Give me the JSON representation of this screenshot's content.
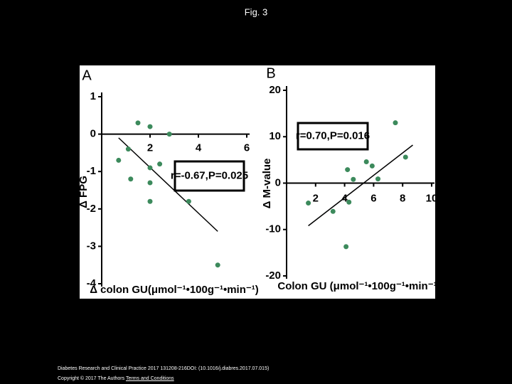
{
  "title": "Fig. 3",
  "chart_data": [
    {
      "type": "scatter",
      "panel": "A",
      "xlabel": "Δ colon GU(μmol⁻¹•100g⁻¹•min⁻¹)",
      "ylabel": "Δ FPG",
      "annotation": "r=-0.67,P=0.025",
      "color": "#3c8a5c",
      "x": [
        1.5,
        2.0,
        2.8,
        0.7,
        1.1,
        1.2,
        2.0,
        2.4,
        2.0,
        2.0,
        3.6,
        4.8
      ],
      "values": [
        0.3,
        0.2,
        0.0,
        -0.7,
        -0.4,
        -1.2,
        -0.9,
        -0.8,
        -1.3,
        -1.8,
        -1.8,
        -3.5
      ],
      "fit_line": {
        "x": [
          0.7,
          4.8
        ],
        "y": [
          -0.1,
          -2.6
        ]
      },
      "xlim": [
        0,
        6
      ],
      "ylim": [
        -4,
        1
      ],
      "xticks": [
        2,
        4,
        6
      ],
      "yticks": [
        1,
        0,
        -1,
        -2,
        -3,
        -4
      ]
    },
    {
      "type": "scatter",
      "panel": "B",
      "xlabel": "Colon GU (μmol⁻¹•100g⁻¹•min⁻¹)",
      "ylabel": "Δ M-value",
      "annotation": "r=0.70,P=0.016",
      "color": "#3c8a5c",
      "x": [
        1.5,
        3.2,
        4.2,
        4.3,
        4.1,
        4.6,
        5.5,
        5.9,
        6.3,
        7.5,
        8.2
      ],
      "values": [
        -4.3,
        -6.1,
        2.9,
        -4.1,
        -13.7,
        0.8,
        4.6,
        3.7,
        0.9,
        13.0,
        5.6
      ],
      "fit_line": {
        "x": [
          1.5,
          8.7
        ],
        "y": [
          -9.2,
          8.2
        ]
      },
      "xlim": [
        0,
        10
      ],
      "ylim": [
        -20,
        20
      ],
      "xticks": [
        2,
        4,
        6,
        8,
        10
      ],
      "yticks": [
        20,
        10,
        0,
        -10,
        -20
      ]
    }
  ],
  "citation": "Diabetes Research and Clinical Practice 2017 131208-216DOI: (10.1016/j.diabres.2017.07.015)",
  "copyright": "Copyright © 2017 The Authors",
  "link": "Terms and Conditions"
}
